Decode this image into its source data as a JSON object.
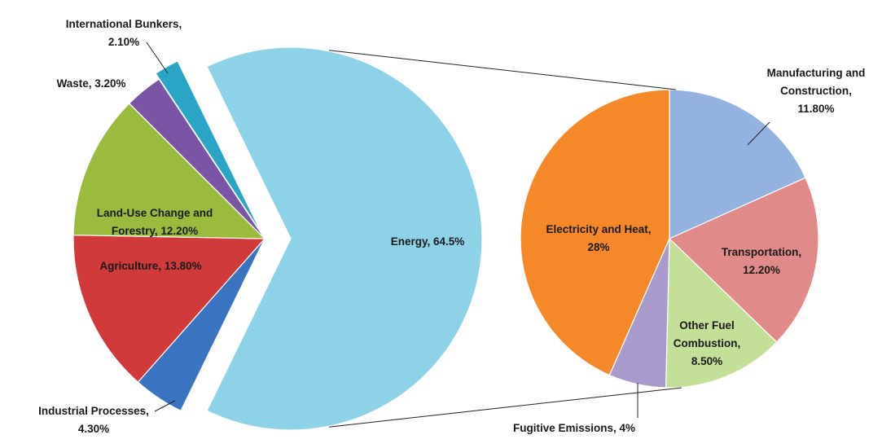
{
  "chart_data": {
    "type": "pie-of-pie",
    "pies": [
      {
        "values": [
          64.5,
          4.3,
          13.8,
          12.2,
          3.2,
          2.1
        ],
        "value_labels": [
          [
            "Energy, 64.5%"
          ],
          [
            "Industrial Processes,",
            "4.30%"
          ],
          [
            "Agriculture, 13.80%"
          ],
          [
            "Land-Use Change and",
            "Forestry, 12.20%"
          ],
          [
            "Waste, 3.20%"
          ],
          [
            "International Bunkers,",
            "2.10%"
          ]
        ],
        "colors": [
          "#8ed2e8",
          "#3a73c0",
          "#d13a3a",
          "#9abb3d",
          "#7a55a5",
          "#2aa5c6"
        ]
      },
      {
        "values": [
          11.8,
          12.2,
          8.5,
          4,
          28
        ],
        "value_labels": [
          [
            "Manufacturing and",
            "Construction,",
            "11.80%"
          ],
          [
            "Transportation,",
            "12.20%"
          ],
          [
            "Other Fuel",
            "Combustion,",
            "8.50%"
          ],
          [
            "Fugitive Emissions, 4%"
          ],
          [
            "Electricity and Heat,",
            "28%"
          ]
        ],
        "colors": [
          "#93b2df",
          "#e08a8a",
          "#c4df98",
          "#a89bcb",
          "#f5892a"
        ]
      }
    ]
  }
}
